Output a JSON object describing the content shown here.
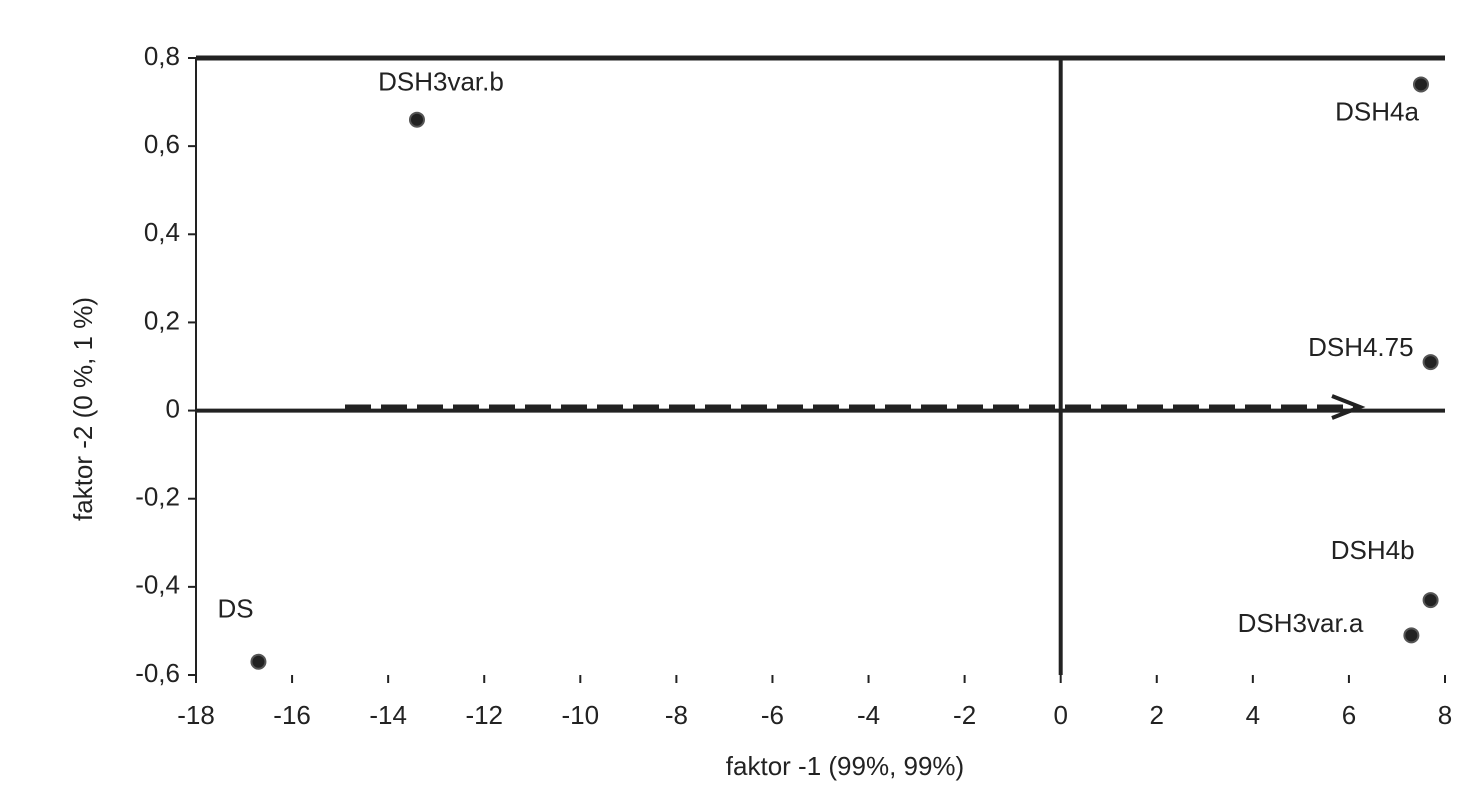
{
  "chart_data": {
    "type": "scatter",
    "xlabel": "faktor -1 (99%, 99%)",
    "ylabel": "faktor -2 (0 %, 1 %)",
    "x": [
      -13.4,
      7.5,
      7.7,
      7.7,
      7.3,
      -16.7
    ],
    "values": [
      0.66,
      0.74,
      0.11,
      -0.43,
      -0.51,
      -0.57
    ],
    "point_labels": [
      "DSH3var.b",
      "DSH4a",
      "DSH4.75",
      "DSH4b",
      "DSH3var.a",
      "DS"
    ],
    "color": "#222222",
    "xlim": [
      -18,
      8
    ],
    "xticks": [
      -18,
      -16,
      -14,
      -12,
      -10,
      -8,
      -6,
      -4,
      -2,
      0,
      2,
      4,
      6,
      8
    ],
    "ylim": [
      -0.6,
      0.8
    ],
    "yticks": [
      {
        "value": -0.6,
        "label": "-0,6"
      },
      {
        "value": -0.4,
        "label": "-0,4"
      },
      {
        "value": -0.2,
        "label": "-0,2"
      },
      0,
      {
        "value": 0.2,
        "label": "0,2"
      },
      {
        "value": 0.4,
        "label": "0,4"
      },
      {
        "value": 0.6,
        "label": "0,6"
      },
      {
        "value": 0.8,
        "label": "0,8"
      }
    ]
  }
}
